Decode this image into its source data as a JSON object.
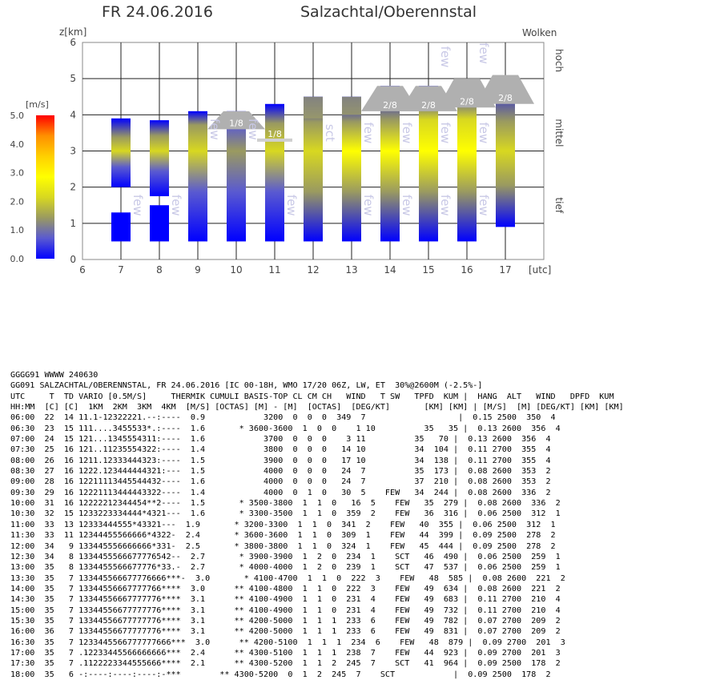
{
  "header": {
    "date": "FR 24.06.2016",
    "place": "Salzachtal/Oberennstal"
  },
  "chart_data": {
    "type": "bar",
    "title": "",
    "ylabel": "z[km]",
    "xlabel": "[utc]",
    "right_label": "Wolken",
    "cloud_levels": [
      "hoch",
      "mittel",
      "tief"
    ],
    "xlim": [
      6,
      18
    ],
    "ylim": [
      0,
      6
    ],
    "x_ticks": [
      6,
      7,
      8,
      9,
      10,
      11,
      12,
      13,
      14,
      15,
      16,
      17
    ],
    "y_ticks": [
      0,
      1,
      2,
      3,
      4,
      5,
      6
    ],
    "grid": true,
    "colorbar": {
      "label": "[m/s]",
      "ticks": [
        "0.0",
        "1.0",
        "2.0",
        "3.0",
        "4.0",
        "5.0"
      ],
      "colors": [
        "#0000ff",
        "#5a5ad0",
        "#9a9a60",
        "#d8d820",
        "#ffff00",
        "#ffd000",
        "#ff9000",
        "#ff0000"
      ]
    },
    "series": [
      {
        "hour": 7,
        "segments": [
          [
            0.5,
            1.3,
            0.2
          ],
          [
            2.0,
            3.9,
            2.2
          ]
        ]
      },
      {
        "hour": 8,
        "segments": [
          [
            0.5,
            1.5,
            0.2
          ],
          [
            1.75,
            3.85,
            2.0
          ]
        ]
      },
      {
        "hour": 9,
        "segments": [
          [
            0.5,
            4.1,
            2.2
          ]
        ]
      },
      {
        "hour": 10,
        "segments": [
          [
            0.5,
            4.1,
            1.6
          ]
        ]
      },
      {
        "hour": 11,
        "segments": [
          [
            0.5,
            4.3,
            1.9
          ]
        ]
      },
      {
        "hour": 12,
        "segments": [
          [
            0.5,
            4.5,
            2.4
          ]
        ]
      },
      {
        "hour": 13,
        "segments": [
          [
            0.5,
            4.5,
            2.5
          ]
        ]
      },
      {
        "hour": 14,
        "segments": [
          [
            0.5,
            4.8,
            2.7
          ]
        ]
      },
      {
        "hour": 15,
        "segments": [
          [
            0.5,
            4.8,
            3.0
          ]
        ]
      },
      {
        "hour": 16,
        "segments": [
          [
            0.5,
            4.9,
            3.1
          ]
        ]
      },
      {
        "hour": 17,
        "segments": [
          [
            0.9,
            5.0,
            2.4
          ]
        ]
      }
    ],
    "cloud_boxes": [
      {
        "hour": 10,
        "base": 3.6,
        "top": 4.1,
        "label": "1/8"
      },
      {
        "hour": 11,
        "base": 3.3,
        "top": 3.3,
        "label": "1/8"
      },
      {
        "hour": 12,
        "base": 3.9,
        "top": 4.5,
        "label": ""
      },
      {
        "hour": 13,
        "base": 4.0,
        "top": 4.5,
        "label": ""
      },
      {
        "hour": 14,
        "base": 4.1,
        "top": 4.8,
        "label": "2/8"
      },
      {
        "hour": 15,
        "base": 4.1,
        "top": 4.8,
        "label": "2/8"
      },
      {
        "hour": 16,
        "base": 4.2,
        "top": 5.0,
        "label": "2/8"
      },
      {
        "hour": 17,
        "base": 4.3,
        "top": 5.1,
        "label": "2/8"
      }
    ],
    "cloud_text": [
      {
        "hour": 7.5,
        "y": 1.5,
        "text": "few"
      },
      {
        "hour": 8.5,
        "y": 1.5,
        "text": "few"
      },
      {
        "hour": 9.5,
        "y": 3.6,
        "text": "few"
      },
      {
        "hour": 10.5,
        "y": 3.6,
        "text": "few"
      },
      {
        "hour": 11.5,
        "y": 1.5,
        "text": "few"
      },
      {
        "hour": 12.5,
        "y": 3.5,
        "text": "sct"
      },
      {
        "hour": 13.5,
        "y": 3.5,
        "text": "few"
      },
      {
        "hour": 13.5,
        "y": 1.5,
        "text": "few"
      },
      {
        "hour": 14.5,
        "y": 3.5,
        "text": "few"
      },
      {
        "hour": 14.5,
        "y": 1.5,
        "text": "few"
      },
      {
        "hour": 15.5,
        "y": 5.6,
        "text": "few"
      },
      {
        "hour": 15.5,
        "y": 3.5,
        "text": "few"
      },
      {
        "hour": 15.5,
        "y": 1.5,
        "text": "few"
      },
      {
        "hour": 16.5,
        "y": 5.7,
        "text": "few"
      },
      {
        "hour": 16.5,
        "y": 3.5,
        "text": "few"
      },
      {
        "hour": 16.5,
        "y": 1.5,
        "text": "few"
      }
    ]
  },
  "table": {
    "lines": [
      "GGGG91 WWWW 240630",
      "GG091 SALZACHTAL/OBERENNSTAL, FR 24.06.2016 [IC 00-18H, WMO 17/20 06Z, LW, ET  30%@2600M (-2.5%-]",
      "UTC     T  TD VARIO [0.5M/S]     THERMIK CUMULI BASIS-TOP CL CM CH   WIND   T SW   TPFD  KUM |  HANG  ALT   WIND   DPFD  KUM",
      "HH:MM  [C] [C]  1KM  2KM  3KM  4KM  [M/S] [OCTAS] [M] - [M]  [OCTAS]  [DEG/KT]       [KM] [KM] | [M/S]  [M] [DEG/KT] [KM] [KM]",
      "06:00  22  14 11.1-12322221.--:----  0.9            3200  0  0  0  349  7                   |  0.15 2500  350  4",
      "06:30  23  15 111....3455533*.:----  1.6       * 3600-3600  1  0  0    1 10          35   35 |  0.13 2600  356  4",
      "07:00  24  15 121...1345554311:----  1.6            3700  0  0  0    3 11          35   70 |  0.13 2600  356  4",
      "07:30  25  16 121..11235554322:----  1.4            3800  0  0  0   14 10          34  104 |  0.11 2700  355  4",
      "08:00  26  16 1211.12333444323:----  1.5            3900  0  0  0   17 10          34  138 |  0.11 2700  355  4",
      "08:30  27  16 1222.123444444321:---  1.5            4000  0  0  0   24  7          35  173 |  0.08 2600  353  2",
      "09:00  28  16 12211113445544432----  1.6            4000  0  0  0   24  7          37  210 |  0.08 2600  353  2",
      "09:30  29  16 12221113444443322----  1.4            4000  0  1  0   30  5    FEW   34  244 |  0.08 2600  336  2",
      "10:00  31  16 12222212344454**2----  1.5       * 3500-3800  1  1  0   16  5    FEW   35  279 |  0.08 2600  336  2",
      "10:30  32  15 1233223334444*4321---  1.6       * 3300-3500  1  1  0  359  2    FEW   36  316 |  0.06 2500  312  1",
      "11:00  33  13 12333444555*43321---  1.9       * 3200-3300  1  1  0  341  2    FEW   40  355 |  0.06 2500  312  1",
      "11:30  33  11 12344455566666*4322-  2.4       * 3600-3600  1  1  0  309  1    FEW   44  399 |  0.09 2500  278  2",
      "12:00  34   9 133445556666666*331-  2.5       * 3800-3800  1  1  0  324  1    FEW   45  444 |  0.09 2500  278  2",
      "12:30  34   8 1334455566677776542--  2.7       * 3900-3900  1  2  0  234  1    SCT   46  490 |  0.06 2500  259  1",
      "13:00  35   8 1334455566677776*33.-  2.7       * 4000-4000  1  2  0  239  1    SCT   47  537 |  0.06 2500  259  1",
      "13:30  35   7 133445566677776666***-  3.0       * 4100-4700  1  1  0  222  3    FEW   48  585 |  0.08 2600  221  2",
      "14:00  35   7 13344556667777766****  3.0      ** 4100-4800  1  1  0  222  3    FEW   49  634 |  0.08 2600  221  2",
      "14:30  35   7 13344556667777776****  3.1      ** 4100-4900  1  1  0  231  4    FEW   49  683 |  0.11 2700  210  4",
      "15:00  35   7 13344556677777776****  3.1      ** 4100-4900  1  1  0  231  4    FEW   49  732 |  0.11 2700  210  4",
      "15:30  35   7 13344556677777776****  3.1      ** 4200-5000  1  1  1  233  6    FEW   49  782 |  0.07 2700  209  2",
      "16:00  36   7 13344556677777776****  3.1      ** 4200-5000  1  1  1  233  6    FEW   49  831 |  0.07 2700  209  2",
      "16:30  35   7 1233445566777777666***  3.0      ** 4200-5100  1  1  1  234  6    FEW   48  879 |  0.09 2700  201  3",
      "17:00  35   7 .12233445566666666***  2.4      ** 4300-5100  1  1  1  238  7    FEW   44  923 |  0.09 2700  201  3",
      "17:30  35   7 .1122223344555666****  2.1      ** 4300-5200  1  1  2  245  7    SCT   41  964 |  0.09 2500  178  2",
      "18:00  35   6 -:----:----:----:-***        ** 4300-5200  0  1  2  245  7    SCT            |  0.09 2500  178  2"
    ]
  }
}
